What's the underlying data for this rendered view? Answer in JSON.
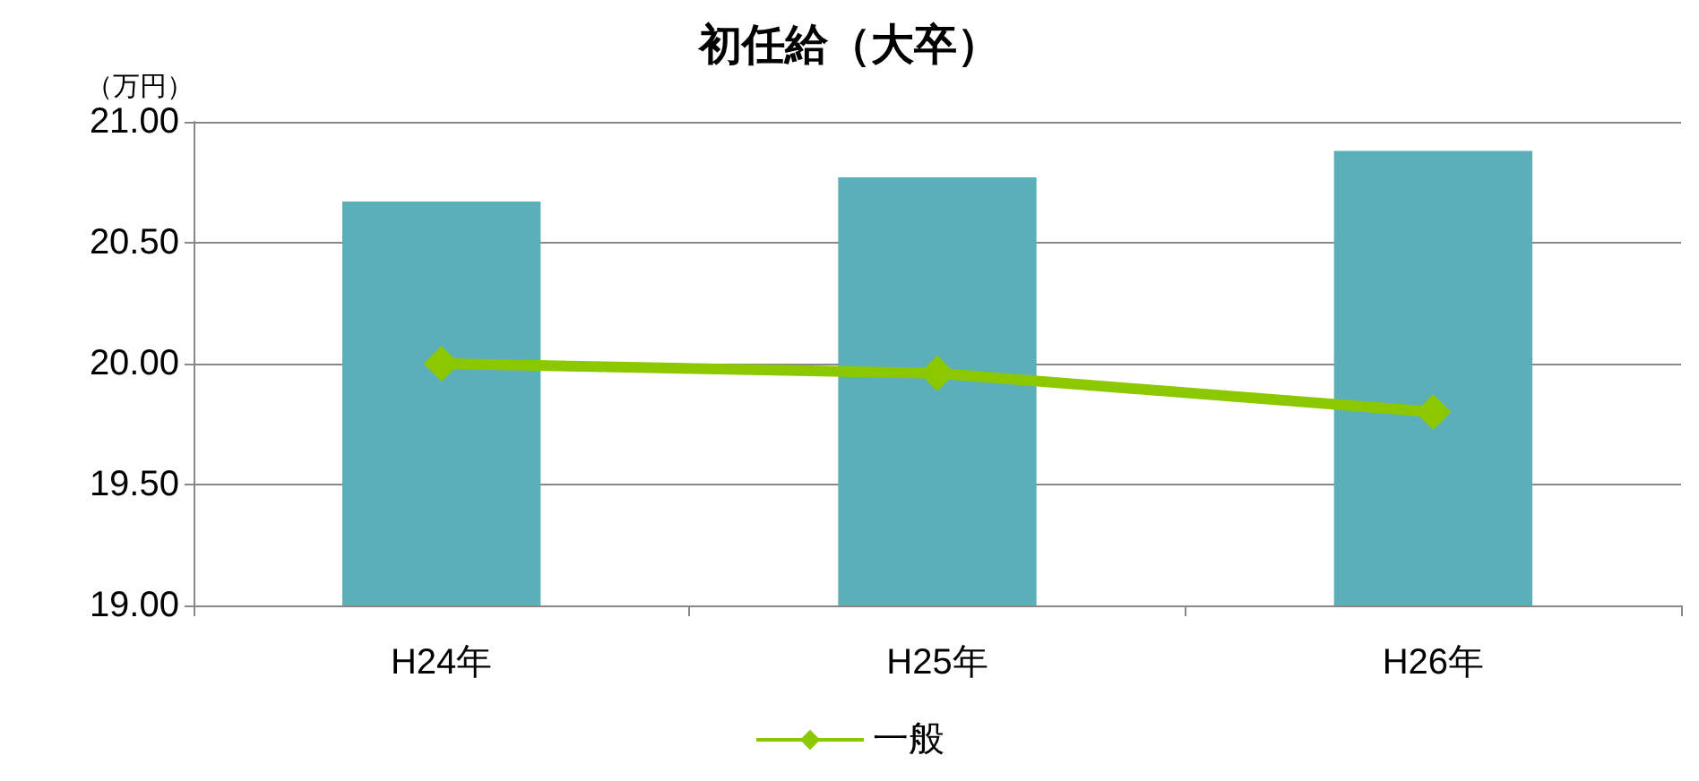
{
  "chart_data": {
    "type": "bar",
    "title": "初任給（大卒）",
    "ylabel": "（万円）",
    "categories": [
      "H24年",
      "H25年",
      "H26年"
    ],
    "series": [
      {
        "color": "#5aafb8",
        "values": [
          20.67,
          20.77,
          20.88
        ]
      },
      {
        "type": "line",
        "name": "一般",
        "color": "#8cc800",
        "values": [
          20.0,
          19.96,
          19.8
        ],
        "marker": "diamond"
      }
    ],
    "ylim": [
      19,
      21
    ],
    "yticks": [
      {
        "value": 19,
        "label": "19.00"
      },
      {
        "value": 19.5,
        "label": "19.50"
      },
      {
        "value": 20,
        "label": "20.00"
      },
      {
        "value": 20.5,
        "label": "20.50"
      },
      {
        "value": 21,
        "label": "21.00"
      }
    ],
    "grid": "y",
    "legend": "bottom"
  }
}
